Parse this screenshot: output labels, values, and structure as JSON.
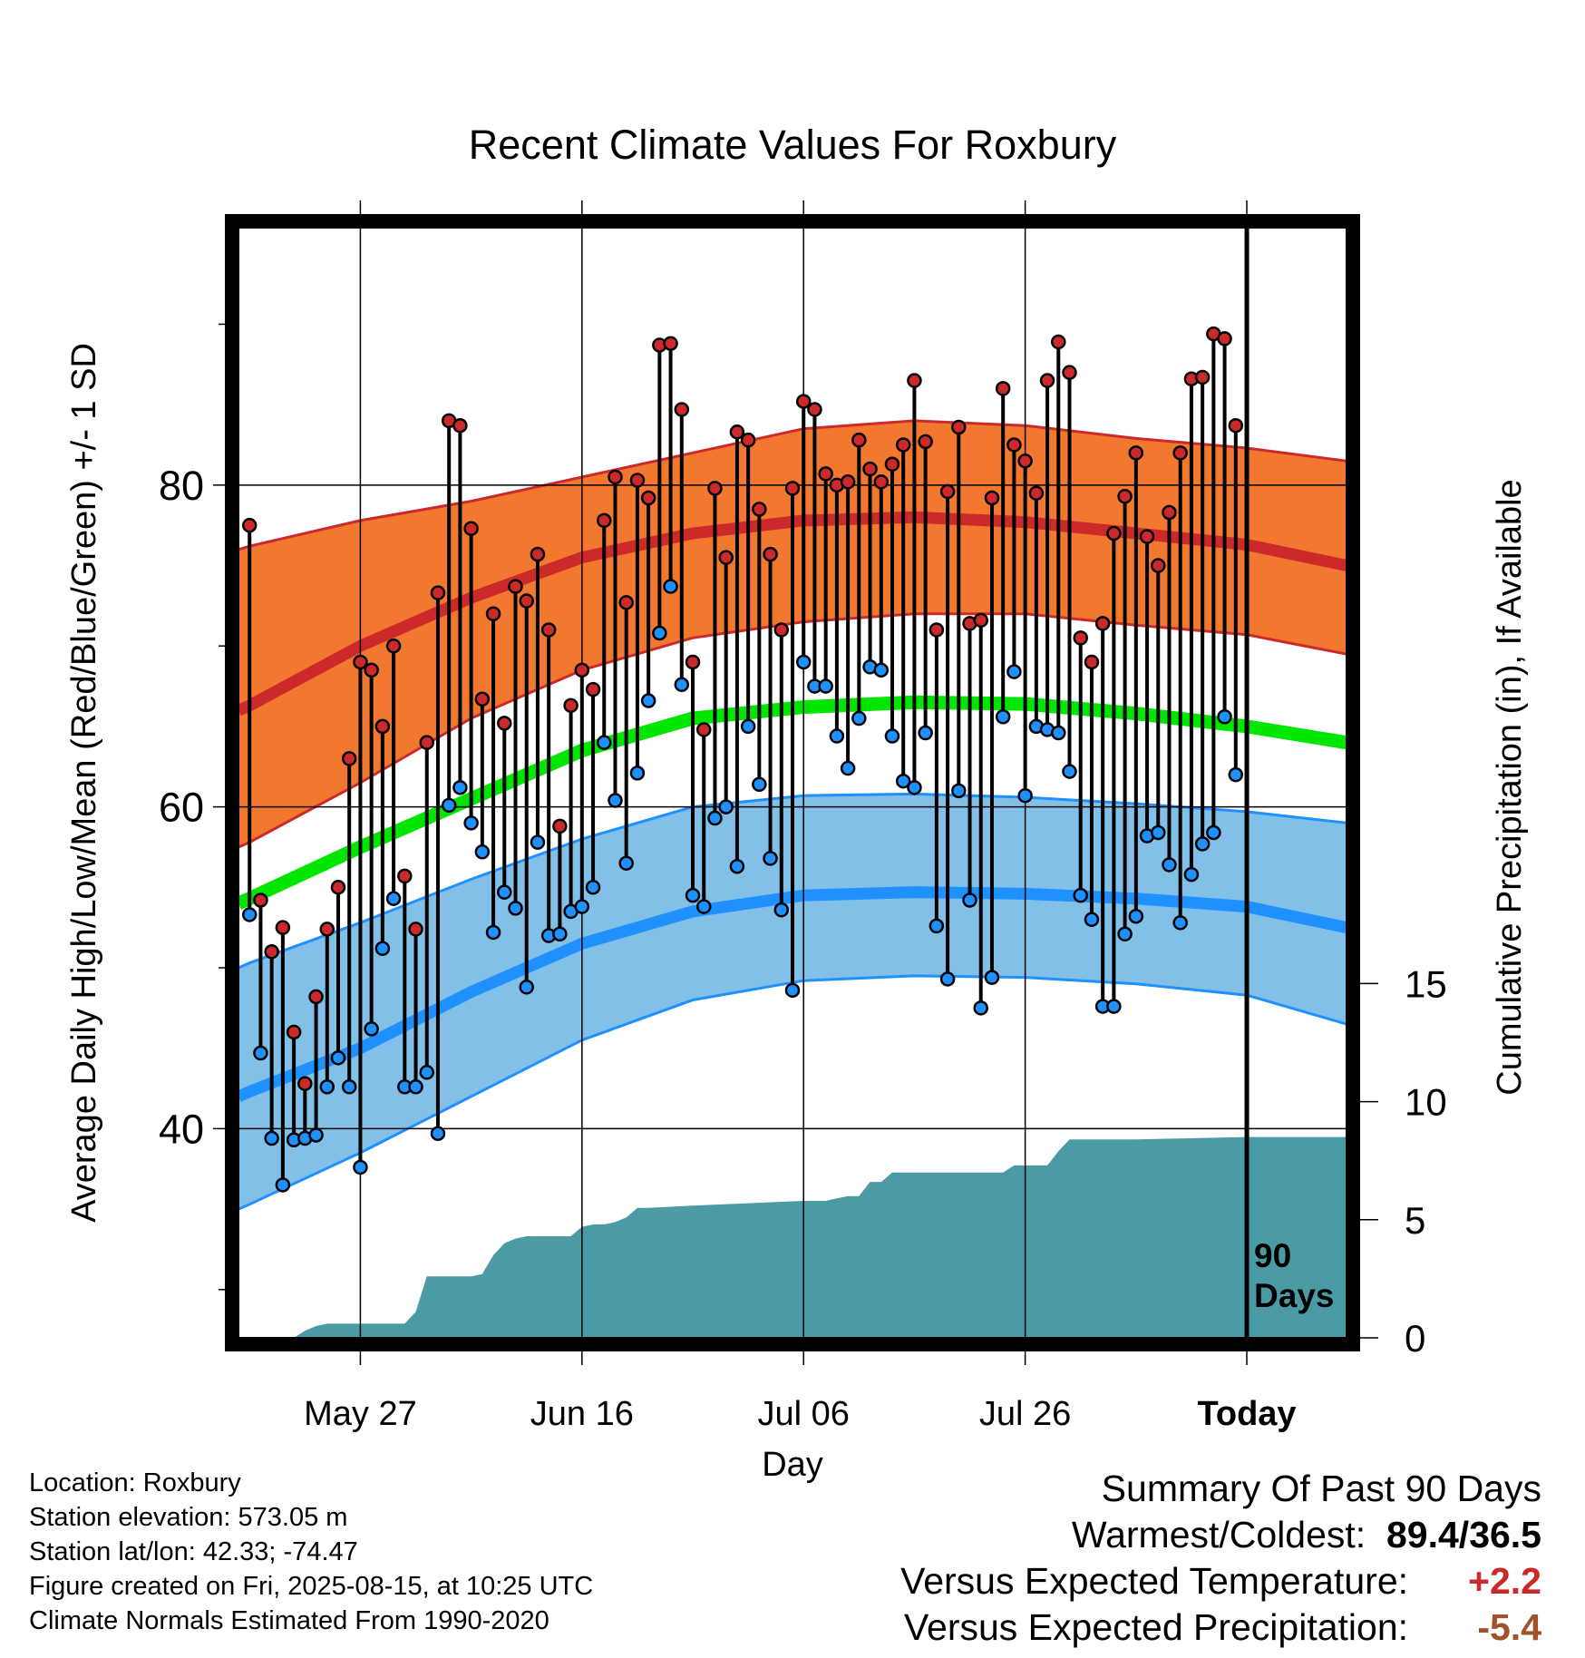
{
  "chart_data": {
    "type": "line",
    "title": "Recent Climate Values For Roxbury",
    "xlabel": "Day",
    "ylabel": "Average Daily High/Low/Mean (Red/Blue/Green) +/- 1 SD",
    "y2label": "Cumulative Precipitation (in), If Available",
    "ylim": [
      27,
      96
    ],
    "y2lim": [
      0,
      47
    ],
    "x_ticks": [
      "May 27",
      "Jun 16",
      "Jul 06",
      "Jul 26",
      "Today"
    ],
    "x_tick_days": [
      10,
      30,
      50,
      70,
      90
    ],
    "xlim": [
      -1,
      99
    ],
    "y_ticks": [
      40,
      60,
      80
    ],
    "y2_ticks": [
      0,
      5,
      10,
      15
    ],
    "today_label": "90\nDays",
    "grid": true,
    "colors": {
      "high": "#cc2a2a",
      "high_band": "#f27830",
      "low": "#1e90ff",
      "low_band": "#82c0e8",
      "mean": "#00e600",
      "precip": "#4a9ba5"
    },
    "normals": {
      "days": [
        -1,
        0,
        10,
        20,
        30,
        40,
        50,
        60,
        70,
        80,
        90,
        99
      ],
      "high_mean": [
        66.0,
        66.3,
        70.0,
        73.0,
        75.5,
        77.0,
        77.8,
        78.0,
        77.7,
        77.0,
        76.3,
        75.0
      ],
      "high_upper": [
        76.0,
        76.2,
        77.8,
        79.0,
        80.5,
        82.0,
        83.5,
        84.0,
        83.7,
        82.9,
        82.3,
        81.5
      ],
      "high_lower": [
        57.5,
        57.8,
        61.5,
        65.5,
        68.5,
        70.5,
        71.5,
        72.0,
        72.0,
        71.3,
        70.7,
        69.5
      ],
      "avg_mean": [
        54.0,
        54.3,
        57.5,
        60.5,
        63.5,
        65.5,
        66.2,
        66.5,
        66.4,
        65.8,
        65.0,
        64.0
      ],
      "low_mean": [
        42.0,
        42.3,
        45.0,
        48.5,
        51.5,
        53.5,
        54.5,
        54.7,
        54.6,
        54.3,
        53.8,
        52.5
      ],
      "low_upper": [
        50.0,
        50.3,
        52.8,
        55.5,
        58.0,
        60.0,
        60.7,
        60.8,
        60.6,
        60.2,
        59.7,
        59.0
      ],
      "low_lower": [
        35.0,
        35.3,
        38.5,
        42.0,
        45.5,
        48.0,
        49.2,
        49.5,
        49.4,
        49.0,
        48.3,
        46.5
      ]
    },
    "series": [
      {
        "name": "High",
        "values": [
          77.5,
          54.2,
          51.0,
          52.5,
          46.0,
          42.8,
          48.2,
          52.4,
          55.0,
          63.0,
          69.0,
          68.5,
          65.0,
          70.0,
          55.7,
          52.4,
          64.0,
          73.3,
          84.0,
          83.7,
          77.3,
          66.7,
          72.0,
          65.2,
          73.7,
          72.8,
          75.7,
          71.0,
          58.8,
          66.3,
          68.5,
          67.3,
          77.8,
          80.5,
          72.7,
          80.3,
          79.2,
          88.7,
          88.8,
          84.7,
          69.0,
          64.8,
          79.8,
          75.5,
          83.3,
          82.8,
          78.5,
          75.7,
          71.0,
          79.8,
          85.2,
          84.7,
          80.7,
          80.0,
          80.2,
          82.8,
          81.0,
          80.2,
          81.3,
          82.5,
          86.5,
          82.7,
          71.0,
          79.6,
          83.6,
          71.4,
          71.6,
          79.2,
          86.0,
          82.5,
          81.5,
          79.5,
          86.5,
          88.9,
          87.0,
          70.5,
          69.0,
          71.4,
          77.0,
          79.3,
          82.0,
          76.8,
          75.0,
          78.3,
          82.0,
          86.6,
          86.7,
          89.4,
          89.1,
          83.7
        ]
      },
      {
        "name": "Low",
        "values": [
          53.3,
          44.7,
          39.4,
          36.5,
          39.3,
          39.4,
          39.6,
          42.6,
          44.4,
          42.6,
          37.6,
          46.2,
          51.2,
          54.3,
          42.6,
          42.6,
          43.5,
          39.7,
          60.1,
          61.2,
          59.0,
          57.2,
          52.2,
          54.7,
          53.7,
          48.8,
          57.8,
          52.0,
          52.1,
          53.5,
          53.8,
          55.0,
          64.0,
          60.4,
          56.5,
          62.1,
          66.6,
          70.8,
          73.7,
          67.6,
          54.5,
          53.8,
          59.3,
          60.0,
          56.3,
          65.0,
          61.4,
          56.8,
          53.6,
          48.6,
          69.0,
          67.5,
          67.5,
          64.4,
          62.4,
          65.5,
          68.7,
          68.5,
          64.4,
          61.6,
          61.2,
          64.6,
          52.6,
          49.3,
          61.0,
          54.2,
          47.5,
          49.4,
          65.6,
          68.4,
          60.7,
          65.0,
          64.8,
          64.6,
          62.2,
          54.5,
          53.0,
          47.6,
          47.6,
          52.1,
          53.2,
          58.2,
          58.4,
          56.4,
          52.8,
          55.8,
          57.7,
          58.4,
          65.6,
          62.0
        ]
      }
    ],
    "precip": {
      "days": [
        4,
        5,
        6,
        7,
        8,
        9,
        10,
        11,
        12,
        13,
        14,
        15,
        16,
        17,
        18,
        19,
        20,
        21,
        22,
        23,
        24,
        25,
        26,
        27,
        28,
        29,
        30,
        31,
        32,
        33,
        34,
        35,
        36,
        40,
        45,
        50,
        52,
        53,
        54,
        55,
        56,
        57,
        58,
        68,
        69,
        72,
        73,
        74,
        75,
        76,
        80,
        90,
        99
      ],
      "values": [
        0.0,
        0.3,
        0.5,
        0.6,
        0.6,
        0.6,
        0.6,
        0.6,
        0.6,
        0.6,
        0.6,
        1.1,
        2.6,
        2.6,
        2.6,
        2.6,
        2.6,
        2.7,
        3.5,
        4.0,
        4.2,
        4.3,
        4.3,
        4.3,
        4.3,
        4.3,
        4.7,
        4.8,
        4.8,
        4.9,
        5.1,
        5.5,
        5.5,
        5.6,
        5.7,
        5.8,
        5.8,
        5.9,
        6.0,
        6.0,
        6.6,
        6.6,
        7.0,
        7.0,
        7.3,
        7.3,
        7.9,
        8.4,
        8.4,
        8.4,
        8.4,
        8.5,
        8.5
      ]
    }
  },
  "info": {
    "location": "Location: Roxbury",
    "elevation": "Station elevation: 573.05 m",
    "latlon": "Station lat/lon: 42.33; -74.47",
    "created": "Figure created on Fri, 2025-08-15, at 10:25 UTC",
    "normals": "Climate Normals Estimated From 1990-2020"
  },
  "summary": {
    "title": "Summary Of Past 90 Days",
    "warm_cold_label": "Warmest/Coldest:",
    "warm_cold_value": "89.4/36.5",
    "temp_label": "Versus Expected Temperature:",
    "temp_value": "+2.2",
    "precip_label": "Versus Expected Precipitation:",
    "precip_value": "-5.4"
  }
}
